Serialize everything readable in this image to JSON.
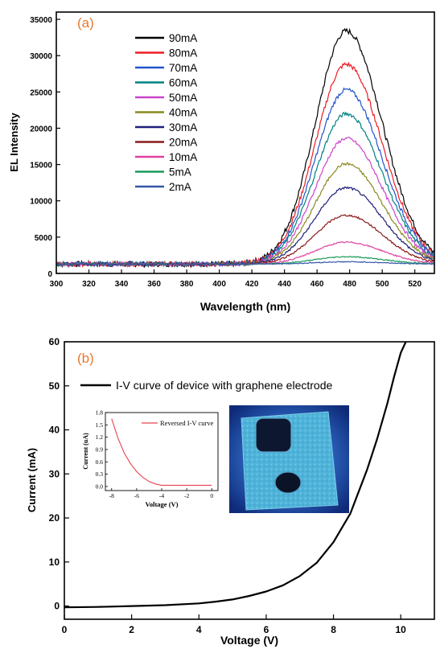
{
  "chart_data": [
    {
      "type": "line",
      "panel_label": "(a)",
      "xlabel": "Wavelength (nm)",
      "ylabel": "EL Intensity",
      "xlim": [
        300,
        532
      ],
      "ylim": [
        0,
        36000
      ],
      "xticks": [
        300,
        320,
        340,
        360,
        380,
        400,
        420,
        440,
        460,
        480,
        500,
        520
      ],
      "yticks": [
        0,
        5000,
        10000,
        15000,
        20000,
        25000,
        30000,
        35000
      ],
      "baseline": 1300,
      "peak_wavelength": 478,
      "legend_placement": "upper-left",
      "series": [
        {
          "name": "90mA",
          "color": "#000000",
          "peak": 33400
        },
        {
          "name": "80mA",
          "color": "#ee1c25",
          "peak": 28800
        },
        {
          "name": "70mA",
          "color": "#2255cc",
          "peak": 25300
        },
        {
          "name": "60mA",
          "color": "#008080",
          "peak": 22000
        },
        {
          "name": "50mA",
          "color": "#cc44cc",
          "peak": 18600
        },
        {
          "name": "40mA",
          "color": "#8a8a1f",
          "peak": 15100
        },
        {
          "name": "30mA",
          "color": "#1f1f7a",
          "peak": 11800
        },
        {
          "name": "20mA",
          "color": "#8b1a1a",
          "peak": 8000
        },
        {
          "name": "10mA",
          "color": "#e040a0",
          "peak": 4300
        },
        {
          "name": "5mA",
          "color": "#1a9a5a",
          "peak": 2300
        },
        {
          "name": "2mA",
          "color": "#3355aa",
          "peak": 1600
        }
      ]
    },
    {
      "type": "line",
      "panel_label": "(b)",
      "xlabel": "Voltage (V)",
      "ylabel": "Current (mA)",
      "xlim": [
        0,
        11
      ],
      "ylim": [
        -3,
        60
      ],
      "xticks": [
        0,
        2,
        4,
        6,
        8,
        10
      ],
      "yticks": [
        0,
        10,
        20,
        30,
        40,
        50,
        60
      ],
      "legend_placement": "top",
      "series": [
        {
          "name": "I-V curve of device with graphene electrode",
          "color": "#000000",
          "x": [
            0,
            1,
            2,
            3,
            4,
            4.5,
            5,
            5.5,
            6,
            6.5,
            7,
            7.5,
            8,
            8.5,
            9,
            9.3,
            9.6,
            9.8,
            10.0,
            10.15
          ],
          "y": [
            -0.3,
            -0.2,
            0,
            0.2,
            0.6,
            1.0,
            1.5,
            2.3,
            3.3,
            4.7,
            6.8,
            9.8,
            14.5,
            21,
            31,
            38,
            46,
            52,
            57.5,
            60
          ]
        }
      ],
      "inset": {
        "xlabel": "Voltage (V)",
        "ylabel": "Current (uA)",
        "xlim": [
          -8.5,
          0.5
        ],
        "ylim": [
          -0.1,
          1.8
        ],
        "xticks": [
          -8,
          -6,
          -4,
          -2,
          0
        ],
        "yticks": [
          0.0,
          0.3,
          0.6,
          0.9,
          1.2,
          1.5,
          1.8
        ],
        "yticklabels": [
          "0.0",
          "0.3",
          "0.6",
          "0.9",
          "1.2",
          "1.5",
          "1.8"
        ],
        "legend_placement": "top-right",
        "series": [
          {
            "name": "Reversed I-V curve",
            "color": "#e8434f",
            "x": [
              -8,
              -7.5,
              -7,
              -6.5,
              -6,
              -5.5,
              -5,
              -4.5,
              -4,
              -3,
              -2,
              -1,
              0
            ],
            "y": [
              1.65,
              1.18,
              0.82,
              0.56,
              0.36,
              0.22,
              0.12,
              0.06,
              0.03,
              0.03,
              0.03,
              0.03,
              0.03
            ]
          }
        ]
      }
    }
  ]
}
